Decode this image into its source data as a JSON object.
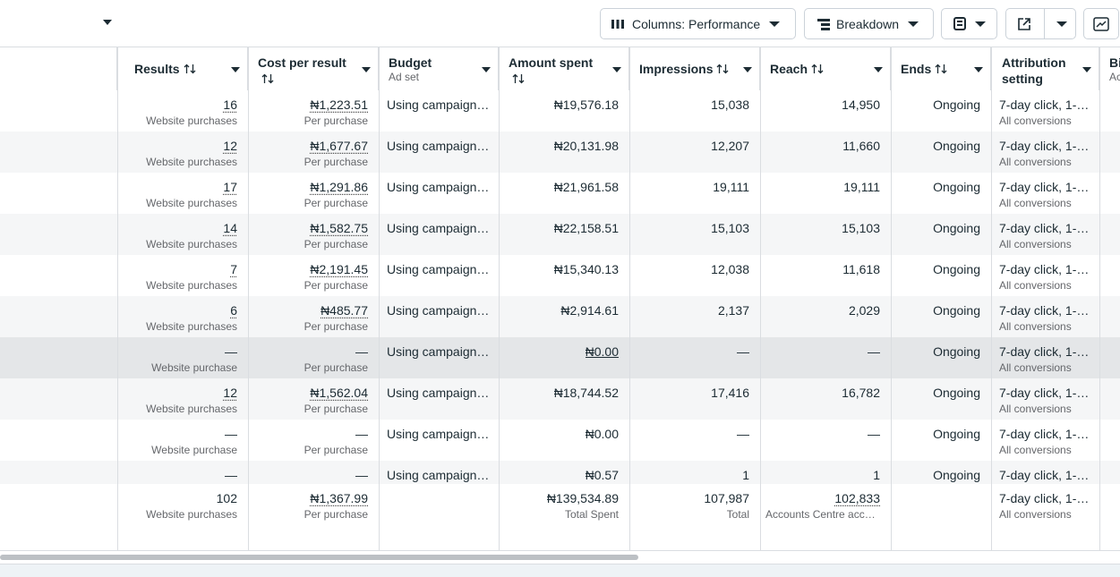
{
  "toolbar": {
    "columns_button": "Columns: Performance",
    "breakdown_button": "Breakdown"
  },
  "table": {
    "headers": [
      {
        "label": "Results",
        "sortable": true
      },
      {
        "label": "Cost per result",
        "sortable": true
      },
      {
        "label": "Budget",
        "note": "Ad set"
      },
      {
        "label": "Amount spent",
        "sortable": true
      },
      {
        "label": "Impressions",
        "sortable": true
      },
      {
        "label": "Reach",
        "sortable": true
      },
      {
        "label": "Ends",
        "sortable": true
      },
      {
        "label": "Attribution setting"
      },
      {
        "label": "Bi",
        "note": "Ac"
      }
    ],
    "rows": [
      {
        "results": "16",
        "results_note": "Website purchases",
        "cost": "₦1,223.51",
        "cost_note": "Per purchase",
        "budget": "Using campaign…",
        "spent": "₦19,576.18",
        "impressions": "15,038",
        "reach": "14,950",
        "ends": "Ongoing",
        "attribution": "7-day click, 1-…",
        "attribution_note": "All conversions"
      },
      {
        "results": "12",
        "results_note": "Website purchases",
        "cost": "₦1,677.67",
        "cost_note": "Per purchase",
        "budget": "Using campaign…",
        "spent": "₦20,131.98",
        "impressions": "12,207",
        "reach": "11,660",
        "ends": "Ongoing",
        "attribution": "7-day click, 1-…",
        "attribution_note": "All conversions"
      },
      {
        "results": "17",
        "results_note": "Website purchases",
        "cost": "₦1,291.86",
        "cost_note": "Per purchase",
        "budget": "Using campaign…",
        "spent": "₦21,961.58",
        "impressions": "19,111",
        "reach": "19,111",
        "ends": "Ongoing",
        "attribution": "7-day click, 1-…",
        "attribution_note": "All conversions"
      },
      {
        "results": "14",
        "results_note": "Website purchases",
        "cost": "₦1,582.75",
        "cost_note": "Per purchase",
        "budget": "Using campaign…",
        "spent": "₦22,158.51",
        "impressions": "15,103",
        "reach": "15,103",
        "ends": "Ongoing",
        "attribution": "7-day click, 1-…",
        "attribution_note": "All conversions"
      },
      {
        "results": "7",
        "results_note": "Website purchases",
        "cost": "₦2,191.45",
        "cost_note": "Per purchase",
        "budget": "Using campaign…",
        "spent": "₦15,340.13",
        "impressions": "12,038",
        "reach": "11,618",
        "ends": "Ongoing",
        "attribution": "7-day click, 1-…",
        "attribution_note": "All conversions"
      },
      {
        "results": "6",
        "results_note": "Website purchases",
        "cost": "₦485.77",
        "cost_note": "Per purchase",
        "budget": "Using campaign…",
        "spent": "₦2,914.61",
        "impressions": "2,137",
        "reach": "2,029",
        "ends": "Ongoing",
        "attribution": "7-day click, 1-…",
        "attribution_note": "All conversions"
      },
      {
        "results": "—",
        "results_note": "Website purchase",
        "cost": "—",
        "cost_note": "Per purchase",
        "budget": "Using campaign…",
        "spent": "₦0.00",
        "impressions": "—",
        "reach": "—",
        "ends": "Ongoing",
        "attribution": "7-day click, 1-…",
        "attribution_note": "All conversions",
        "highlighted": true
      },
      {
        "results": "12",
        "results_note": "Website purchases",
        "cost": "₦1,562.04",
        "cost_note": "Per purchase",
        "budget": "Using campaign…",
        "spent": "₦18,744.52",
        "impressions": "17,416",
        "reach": "16,782",
        "ends": "Ongoing",
        "attribution": "7-day click, 1-…",
        "attribution_note": "All conversions"
      },
      {
        "results": "—",
        "results_note": "Website purchase",
        "cost": "—",
        "cost_note": "Per purchase",
        "budget": "Using campaign…",
        "spent": "₦0.00",
        "impressions": "—",
        "reach": "—",
        "ends": "Ongoing",
        "attribution": "7-day click, 1-…",
        "attribution_note": "All conversions"
      },
      {
        "results": "—",
        "cost": "—",
        "budget": "Using campaign…",
        "spent": "₦0.57",
        "impressions": "1",
        "reach": "1",
        "ends": "Ongoing",
        "attribution": "7-day click, 1-…"
      }
    ],
    "total": {
      "results": "102",
      "results_note": "Website purchases",
      "cost": "₦1,367.99",
      "cost_note": "Per purchase",
      "spent": "₦139,534.89",
      "spent_note": "Total Spent",
      "impressions": "107,987",
      "impressions_note": "Total",
      "reach": "102,833",
      "reach_note": "Accounts Centre acco…",
      "attribution": "7-day click, 1-…",
      "attribution_note": "All conversions"
    }
  }
}
